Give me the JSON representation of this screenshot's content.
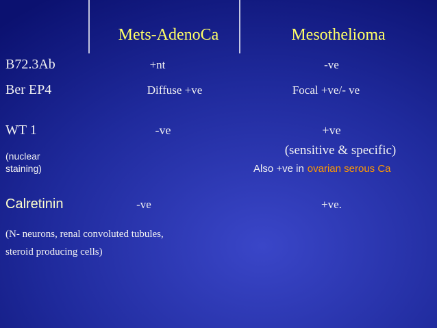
{
  "table": {
    "header": [
      "Mets-AdenoCa",
      "Mesothelioma"
    ],
    "rows": [
      {
        "label": "B72.3Ab",
        "cells": [
          "+nt",
          "-ve"
        ]
      },
      {
        "label": "Ber EP4",
        "cells": [
          "Diffuse +ve",
          "Focal +ve/- ve"
        ]
      },
      {
        "label": "WT 1",
        "sublabel": [
          "(nuclear",
          "staining)"
        ],
        "cells": [
          "-ve",
          "+ve"
        ],
        "detail": [
          "(sensitive & specific)",
          "Also +ve in",
          "ovarian serous Ca"
        ]
      },
      {
        "label": "Calretinin",
        "cells": [
          "-ve",
          "+ve."
        ]
      }
    ],
    "note": [
      "(N- neurons, renal convoluted tubules,",
      "steroid producing cells)"
    ]
  }
}
